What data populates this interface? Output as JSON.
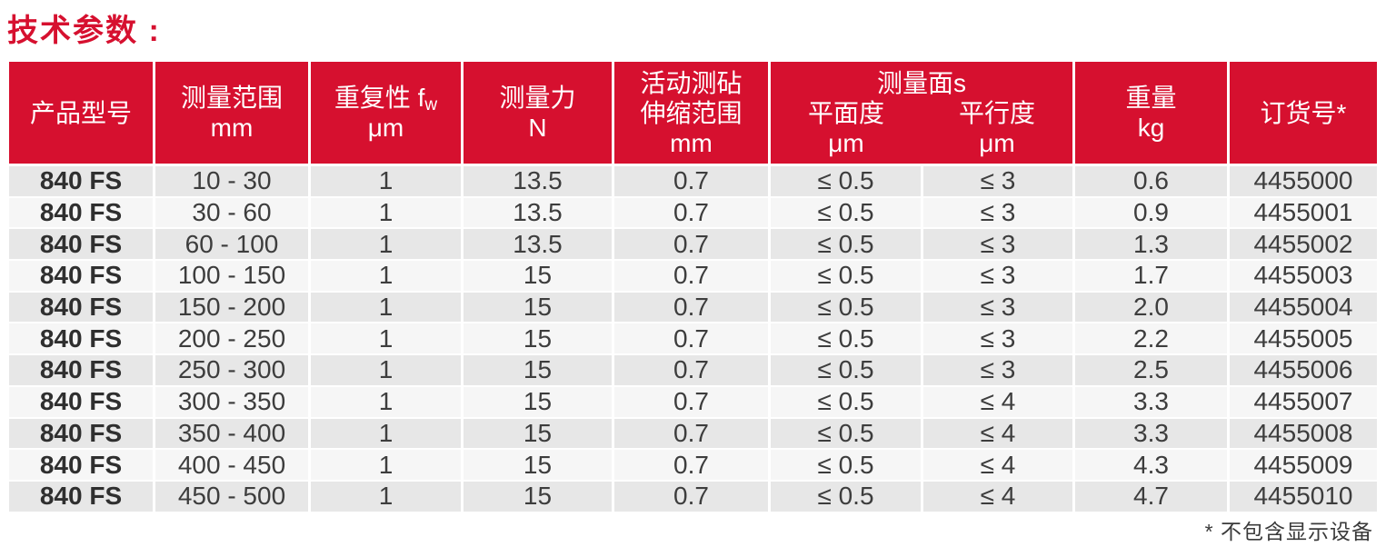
{
  "page": {
    "title": "技术参数 :",
    "footnote": "* 不包含显示设备"
  },
  "colors": {
    "brand_red": "#d6102f",
    "row_stripe_odd": "#e7e7e7",
    "row_stripe_even": "#f6f6f6",
    "header_text": "#ffffff",
    "body_text": "#3d3d3d"
  },
  "table": {
    "header": {
      "product_model": "产品型号",
      "range_label": "测量范围",
      "range_unit": "mm",
      "repeat_prefix": "重复性 f",
      "repeat_sub": "w",
      "repeat_unit": "μm",
      "force_label": "测量力",
      "force_unit": "N",
      "anvil_line1": "活动测砧",
      "anvil_line2": "伸缩范围",
      "anvil_unit": "mm",
      "faces_group": "测量面s",
      "faces_flatness": "平面度",
      "faces_parallelism": "平行度",
      "faces_flatness_unit": "μm",
      "faces_parallelism_unit": "μm",
      "weight_label": "重量",
      "weight_unit": "kg",
      "order_label": "订货号*"
    },
    "rows": [
      {
        "model": "840 FS",
        "range": "10 - 30",
        "repeatability": "1",
        "force": "13.5",
        "anvil": "0.7",
        "flatness": "≤ 0.5",
        "parallelism": "≤ 3",
        "weight": "0.6",
        "order": "4455000"
      },
      {
        "model": "840 FS",
        "range": "30 - 60",
        "repeatability": "1",
        "force": "13.5",
        "anvil": "0.7",
        "flatness": "≤ 0.5",
        "parallelism": "≤ 3",
        "weight": "0.9",
        "order": "4455001"
      },
      {
        "model": "840 FS",
        "range": "60 - 100",
        "repeatability": "1",
        "force": "13.5",
        "anvil": "0.7",
        "flatness": "≤ 0.5",
        "parallelism": "≤ 3",
        "weight": "1.3",
        "order": "4455002"
      },
      {
        "model": "840 FS",
        "range": "100 - 150",
        "repeatability": "1",
        "force": "15",
        "anvil": "0.7",
        "flatness": "≤ 0.5",
        "parallelism": "≤ 3",
        "weight": "1.7",
        "order": "4455003"
      },
      {
        "model": "840 FS",
        "range": "150 - 200",
        "repeatability": "1",
        "force": "15",
        "anvil": "0.7",
        "flatness": "≤ 0.5",
        "parallelism": "≤ 3",
        "weight": "2.0",
        "order": "4455004"
      },
      {
        "model": "840 FS",
        "range": "200 - 250",
        "repeatability": "1",
        "force": "15",
        "anvil": "0.7",
        "flatness": "≤ 0.5",
        "parallelism": "≤ 3",
        "weight": "2.2",
        "order": "4455005"
      },
      {
        "model": "840 FS",
        "range": "250 - 300",
        "repeatability": "1",
        "force": "15",
        "anvil": "0.7",
        "flatness": "≤ 0.5",
        "parallelism": "≤ 3",
        "weight": "2.5",
        "order": "4455006"
      },
      {
        "model": "840 FS",
        "range": "300 - 350",
        "repeatability": "1",
        "force": "15",
        "anvil": "0.7",
        "flatness": "≤ 0.5",
        "parallelism": "≤ 4",
        "weight": "3.3",
        "order": "4455007"
      },
      {
        "model": "840 FS",
        "range": "350 - 400",
        "repeatability": "1",
        "force": "15",
        "anvil": "0.7",
        "flatness": "≤ 0.5",
        "parallelism": "≤ 4",
        "weight": "3.3",
        "order": "4455008"
      },
      {
        "model": "840 FS",
        "range": "400 - 450",
        "repeatability": "1",
        "force": "15",
        "anvil": "0.7",
        "flatness": "≤ 0.5",
        "parallelism": "≤ 4",
        "weight": "4.3",
        "order": "4455009"
      },
      {
        "model": "840 FS",
        "range": "450 - 500",
        "repeatability": "1",
        "force": "15",
        "anvil": "0.7",
        "flatness": "≤ 0.5",
        "parallelism": "≤ 4",
        "weight": "4.7",
        "order": "4455010"
      }
    ]
  }
}
